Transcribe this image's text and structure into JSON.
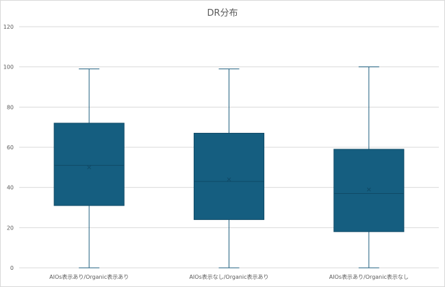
{
  "chart_data": {
    "type": "box",
    "title": "DR分布",
    "xlabel": "",
    "ylabel": "",
    "ylim": [
      0,
      120
    ],
    "yticks": [
      0,
      20,
      40,
      60,
      80,
      100,
      120
    ],
    "grid": true,
    "categories": [
      "AIOs表示あり/Organic表示あり",
      "AIOs表示なし/Organic表示あり",
      "AIOs表示あり/Organic表示なし"
    ],
    "boxes": [
      {
        "min": 0,
        "q1": 31,
        "median": 51,
        "mean": 50,
        "q3": 72,
        "max": 99
      },
      {
        "min": 0,
        "q1": 24,
        "median": 43,
        "mean": 44,
        "q3": 67,
        "max": 99
      },
      {
        "min": 0,
        "q1": 18,
        "median": 37,
        "mean": 39,
        "q3": 59,
        "max": 100
      }
    ],
    "colors": {
      "box_fill": "#155e80",
      "box_stroke": "#0f4a66",
      "whisker": "#1f5f7f",
      "grid": "#d9d9d9",
      "text": "#595959"
    }
  }
}
